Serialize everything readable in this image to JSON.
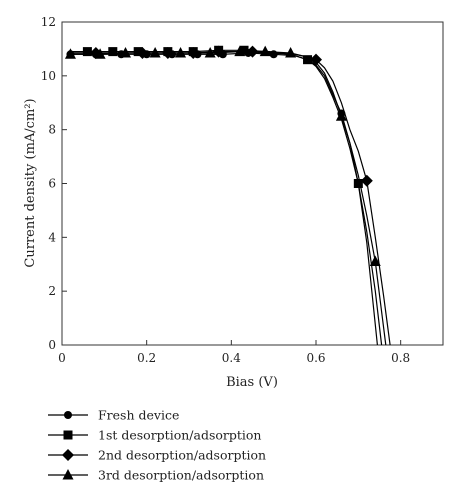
{
  "chart_data": {
    "type": "line",
    "title": "",
    "xlabel": "Bias (V)",
    "ylabel": "Current density (mA/cm²)",
    "xlim": [
      0,
      0.9
    ],
    "ylim": [
      0,
      12
    ],
    "xticks": [
      0,
      0.2,
      0.4,
      0.6,
      0.8
    ],
    "xtick_labels": [
      "0",
      "0.2",
      "0.4",
      "0.6",
      "0.8"
    ],
    "yticks": [
      0,
      2,
      4,
      6,
      8,
      10,
      12
    ],
    "ytick_labels": [
      "0",
      "2",
      "4",
      "6",
      "8",
      "10",
      "12"
    ],
    "grid": false,
    "legend_position": "below",
    "series": [
      {
        "name": "Fresh device",
        "marker": "circle",
        "x": [
          0.02,
          0.08,
          0.14,
          0.2,
          0.26,
          0.32,
          0.38,
          0.44,
          0.5,
          0.55,
          0.58,
          0.6,
          0.62,
          0.64,
          0.66,
          0.68,
          0.7,
          0.72,
          0.74,
          0.755
        ],
        "y": [
          10.8,
          10.8,
          10.8,
          10.8,
          10.8,
          10.8,
          10.8,
          10.85,
          10.8,
          10.75,
          10.6,
          10.4,
          10.0,
          9.3,
          8.6,
          7.5,
          6.0,
          4.2,
          2.0,
          0.0
        ],
        "marker_points": {
          "x": [
            0.02,
            0.08,
            0.14,
            0.2,
            0.26,
            0.32,
            0.38,
            0.44,
            0.5,
            0.66
          ],
          "y": [
            10.8,
            10.8,
            10.8,
            10.8,
            10.8,
            10.8,
            10.8,
            10.85,
            10.8,
            8.6
          ]
        }
      },
      {
        "name": "1st desorption/adsorption",
        "marker": "square",
        "x": [
          0.02,
          0.06,
          0.12,
          0.18,
          0.25,
          0.31,
          0.37,
          0.43,
          0.49,
          0.54,
          0.58,
          0.6,
          0.62,
          0.64,
          0.66,
          0.68,
          0.7,
          0.72,
          0.745
        ],
        "y": [
          10.9,
          10.9,
          10.9,
          10.9,
          10.9,
          10.9,
          10.95,
          10.95,
          10.9,
          10.8,
          10.6,
          10.35,
          9.9,
          9.2,
          8.4,
          7.3,
          6.0,
          3.8,
          0.0
        ],
        "marker_points": {
          "x": [
            0.06,
            0.12,
            0.18,
            0.25,
            0.31,
            0.37,
            0.43,
            0.58,
            0.7
          ],
          "y": [
            10.9,
            10.9,
            10.9,
            10.9,
            10.9,
            10.95,
            10.95,
            10.6,
            6.0
          ]
        }
      },
      {
        "name": "2nd desorption/adsorption",
        "marker": "diamond",
        "x": [
          0.02,
          0.08,
          0.14,
          0.19,
          0.25,
          0.31,
          0.37,
          0.43,
          0.49,
          0.55,
          0.58,
          0.6,
          0.62,
          0.64,
          0.66,
          0.68,
          0.7,
          0.72,
          0.74,
          0.76,
          0.775
        ],
        "y": [
          10.85,
          10.85,
          10.85,
          10.85,
          10.85,
          10.85,
          10.9,
          10.9,
          10.85,
          10.8,
          10.7,
          10.6,
          10.3,
          9.8,
          9.0,
          8.0,
          7.2,
          6.1,
          4.0,
          1.8,
          0.0
        ],
        "marker_points": {
          "x": [
            0.08,
            0.19,
            0.25,
            0.31,
            0.37,
            0.45,
            0.6,
            0.72
          ],
          "y": [
            10.85,
            10.85,
            10.85,
            10.85,
            10.9,
            10.9,
            10.6,
            6.1
          ]
        }
      },
      {
        "name": "3rd desorption/adsorption",
        "marker": "triangle",
        "x": [
          0.02,
          0.09,
          0.15,
          0.22,
          0.28,
          0.35,
          0.42,
          0.48,
          0.54,
          0.58,
          0.6,
          0.62,
          0.64,
          0.66,
          0.68,
          0.7,
          0.72,
          0.74,
          0.765
        ],
        "y": [
          10.8,
          10.8,
          10.85,
          10.85,
          10.85,
          10.85,
          10.9,
          10.9,
          10.85,
          10.7,
          10.5,
          10.1,
          9.4,
          8.5,
          7.5,
          6.3,
          4.8,
          3.1,
          0.0
        ],
        "marker_points": {
          "x": [
            0.02,
            0.09,
            0.15,
            0.22,
            0.28,
            0.35,
            0.42,
            0.48,
            0.54,
            0.66,
            0.74
          ],
          "y": [
            10.8,
            10.8,
            10.85,
            10.85,
            10.85,
            10.85,
            10.9,
            10.9,
            10.85,
            8.5,
            3.1
          ]
        }
      }
    ],
    "colors": {
      "line": "#000000",
      "axis": "#333333",
      "text": "#222222"
    }
  }
}
